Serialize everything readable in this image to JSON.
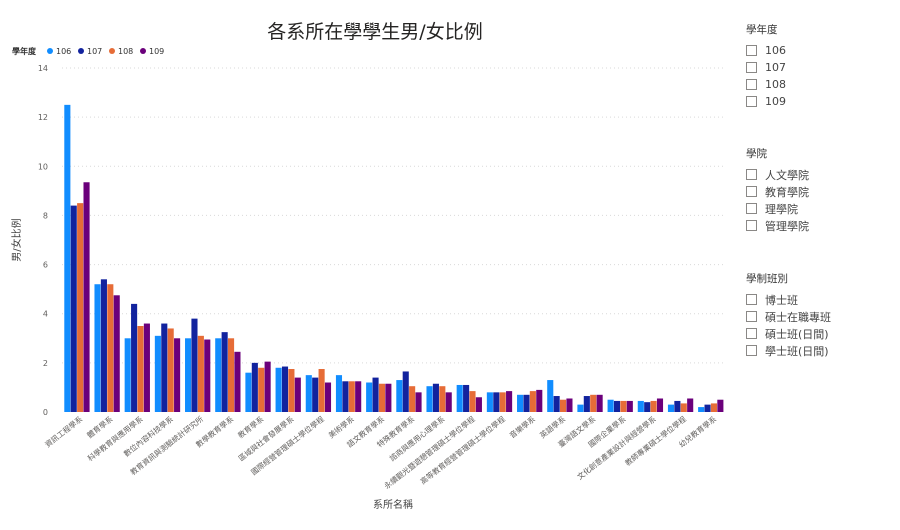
{
  "chart_data": {
    "type": "bar",
    "title": "各系所在學學生男/女比例",
    "xlabel": "系所名稱",
    "ylabel": "男/女比例",
    "ylim": [
      0,
      14
    ],
    "yticks": [
      0,
      2,
      4,
      6,
      8,
      10,
      12,
      14
    ],
    "grid": true,
    "legend_title": "學年度",
    "legend_position": "top-left",
    "categories": [
      "資訊工程學系",
      "體育學系",
      "科學教育與應用學系",
      "數位內容科技學系",
      "教育資訊與測驗統計研究所",
      "數學教育學系",
      "教育學系",
      "區域與社會發展學系",
      "國際經營管理碩士學位學程",
      "美術學系",
      "語文教育學系",
      "特殊教育學系",
      "諮商與應用心理學系",
      "永續觀光暨遊憩管理碩士學位學程",
      "高等教育經營管理碩士學位學程",
      "音樂學系",
      "英語學系",
      "臺灣語文學系",
      "國際企業學系",
      "文化創意產業設計與經營學系",
      "教師專業碩士學位學程",
      "幼兒教育學系"
    ],
    "series": [
      {
        "name": "106",
        "color": "#118DFF",
        "values": [
          12.5,
          5.2,
          3.0,
          3.1,
          3.0,
          3.0,
          1.6,
          1.8,
          1.5,
          1.5,
          1.2,
          1.3,
          1.05,
          1.1,
          0.8,
          0.7,
          1.3,
          0.3,
          0.5,
          0.45,
          0.3,
          0.2
        ]
      },
      {
        "name": "107",
        "color": "#12239E",
        "values": [
          8.4,
          5.4,
          4.4,
          3.6,
          3.8,
          3.25,
          2.0,
          1.85,
          1.4,
          1.25,
          1.4,
          1.65,
          1.15,
          1.1,
          0.8,
          0.7,
          0.65,
          0.65,
          0.45,
          0.4,
          0.45,
          0.3
        ]
      },
      {
        "name": "108",
        "color": "#E66C37",
        "values": [
          8.5,
          5.2,
          3.5,
          3.4,
          3.1,
          3.0,
          1.8,
          1.75,
          1.75,
          1.25,
          1.15,
          1.05,
          1.05,
          0.85,
          0.8,
          0.85,
          0.5,
          0.7,
          0.45,
          0.45,
          0.35,
          0.35
        ]
      },
      {
        "name": "109",
        "color": "#6B007B",
        "values": [
          9.35,
          4.75,
          3.6,
          3.0,
          2.95,
          2.45,
          2.05,
          1.4,
          1.2,
          1.25,
          1.15,
          0.8,
          0.8,
          0.6,
          0.85,
          0.9,
          0.55,
          0.7,
          0.45,
          0.55,
          0.55,
          0.5
        ]
      }
    ]
  },
  "slicers": [
    {
      "title": "學年度",
      "items": [
        "106",
        "107",
        "108",
        "109"
      ]
    },
    {
      "title": "學院",
      "items": [
        "人文學院",
        "教育學院",
        "理學院",
        "管理學院"
      ]
    },
    {
      "title": "學制班別",
      "items": [
        "博士班",
        "碩士在職專班",
        "碩士班(日間)",
        "學士班(日間)"
      ]
    }
  ]
}
